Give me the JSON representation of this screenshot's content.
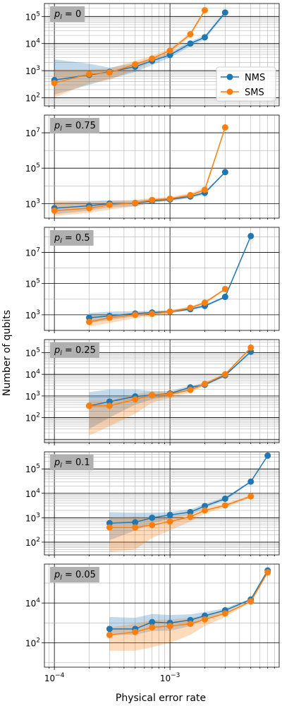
{
  "figure": {
    "xlabel": "Physical error rate",
    "ylabel": "Number of qubits"
  },
  "legend": {
    "entries": [
      {
        "name": "NMS",
        "color": "#1f77b4"
      },
      {
        "name": "SMS",
        "color": "#ff7f0e"
      }
    ]
  },
  "chart_data": [
    {
      "type": "line",
      "annotation": "p_l = 0",
      "x_scale": "log",
      "y_scale": "log",
      "xlim": [
        8.2e-05,
        0.0088
      ],
      "ylim": [
        50,
        300000
      ],
      "x_ticks": [
        "10^-4",
        "10^-3"
      ],
      "y_ticks": [
        "10^2",
        "10^3",
        "10^4",
        "10^5"
      ],
      "grid": "both (major and minor)",
      "legend_placement": "lower-right",
      "series": [
        {
          "name": "NMS",
          "color": "#1f77b4",
          "x": [
            0.0001,
            0.0002,
            0.0003,
            0.0005,
            0.0007,
            0.001,
            0.0015,
            0.002,
            0.003
          ],
          "y": [
            450,
            700,
            900,
            1400,
            2300,
            3800,
            10000,
            17000,
            140000
          ],
          "band_low": [
            130,
            300,
            500,
            900,
            1600,
            3000,
            8000,
            14000,
            120000
          ],
          "band_high": [
            2600,
            1800,
            1300,
            1900,
            2800,
            4600,
            12000,
            20000,
            160000
          ]
        },
        {
          "name": "SMS",
          "color": "#ff7f0e",
          "x": [
            0.0001,
            0.0002,
            0.0003,
            0.0005,
            0.0007,
            0.001,
            0.0015,
            0.002
          ],
          "y": [
            350,
            750,
            850,
            1700,
            2800,
            5500,
            22000,
            170000
          ],
          "band_low": [
            100,
            350,
            450,
            1100,
            2100,
            4500,
            18000,
            150000
          ],
          "band_high": [
            1100,
            1100,
            1200,
            2300,
            3500,
            6500,
            26000,
            190000
          ]
        }
      ]
    },
    {
      "type": "line",
      "annotation": "p_l = 0.75",
      "x_scale": "log",
      "y_scale": "log",
      "xlim": [
        8.2e-05,
        0.0088
      ],
      "ylim": [
        150,
        100000000
      ],
      "x_ticks": [
        "10^-4",
        "10^-3"
      ],
      "y_ticks": [
        "10^3",
        "10^5",
        "10^7"
      ],
      "grid": "both (major and minor)",
      "series": [
        {
          "name": "NMS",
          "color": "#1f77b4",
          "x": [
            0.0001,
            0.0002,
            0.0003,
            0.0005,
            0.0007,
            0.001,
            0.0015,
            0.002,
            0.003
          ],
          "y": [
            550,
            750,
            1000,
            1050,
            1400,
            1700,
            2500,
            4000,
            60000
          ],
          "band_low": [
            250,
            400,
            600,
            700,
            1100,
            1400,
            2000,
            3300,
            55000
          ],
          "band_high": [
            1200,
            1400,
            1500,
            1500,
            1800,
            2100,
            3100,
            4800,
            66000
          ]
        },
        {
          "name": "SMS",
          "color": "#ff7f0e",
          "x": [
            0.0001,
            0.0002,
            0.0003,
            0.0005,
            0.0007,
            0.001,
            0.0015,
            0.002,
            0.003
          ],
          "y": [
            400,
            550,
            850,
            1100,
            1600,
            1900,
            3000,
            6000,
            20000000
          ],
          "band_low": [
            200,
            300,
            450,
            700,
            1200,
            1500,
            2300,
            4500,
            18000000
          ],
          "band_high": [
            1500,
            1300,
            1400,
            1600,
            2100,
            2400,
            3900,
            8000,
            22000000
          ]
        }
      ]
    },
    {
      "type": "line",
      "annotation": "p_l = 0.5",
      "x_scale": "log",
      "y_scale": "log",
      "xlim": [
        8.2e-05,
        0.0088
      ],
      "ylim": [
        100,
        400000000
      ],
      "x_ticks": [
        "10^-4",
        "10^-3"
      ],
      "y_ticks": [
        "10^3",
        "10^5",
        "10^7"
      ],
      "grid": "both (major and minor)",
      "series": [
        {
          "name": "NMS",
          "color": "#1f77b4",
          "x": [
            0.0002,
            0.0003,
            0.0005,
            0.0007,
            0.001,
            0.0015,
            0.002,
            0.003,
            0.005
          ],
          "y": [
            650,
            850,
            1200,
            1400,
            1600,
            2300,
            3700,
            14000,
            110000000
          ],
          "band_low": [
            300,
            450,
            800,
            1000,
            1300,
            1900,
            3000,
            12000,
            100000000
          ],
          "band_high": [
            1300,
            1600,
            1700,
            1800,
            2000,
            2800,
            4500,
            16000,
            120000000
          ]
        },
        {
          "name": "SMS",
          "color": "#ff7f0e",
          "x": [
            0.0002,
            0.0003,
            0.0005,
            0.0007,
            0.001,
            0.0015,
            0.002,
            0.003
          ],
          "y": [
            350,
            650,
            1000,
            1150,
            1600,
            2800,
            6000,
            45000
          ],
          "band_low": [
            180,
            300,
            600,
            800,
            1200,
            2200,
            4800,
            40000
          ],
          "band_high": [
            900,
            1000,
            1400,
            1500,
            2000,
            3400,
            7500,
            50000
          ]
        }
      ]
    },
    {
      "type": "line",
      "annotation": "p_l = 0.25",
      "x_scale": "log",
      "y_scale": "log",
      "xlim": [
        8.2e-05,
        0.0088
      ],
      "ylim": [
        7,
        400000
      ],
      "x_ticks": [
        "10^-4",
        "10^-3"
      ],
      "y_ticks": [
        "10^2",
        "10^3",
        "10^4",
        "10^5"
      ],
      "grid": "both (major and minor)",
      "series": [
        {
          "name": "NMS",
          "color": "#1f77b4",
          "x": [
            0.0002,
            0.0003,
            0.0005,
            0.0007,
            0.001,
            0.0015,
            0.002,
            0.003,
            0.005
          ],
          "y": [
            350,
            550,
            950,
            1100,
            1300,
            2500,
            3300,
            9000,
            110000
          ],
          "band_low": [
            30,
            100,
            400,
            700,
            1000,
            2000,
            2800,
            8000,
            100000
          ],
          "band_high": [
            1500,
            2000,
            2000,
            1700,
            1700,
            3000,
            4000,
            10000,
            120000
          ]
        },
        {
          "name": "SMS",
          "color": "#ff7f0e",
          "x": [
            0.0002,
            0.0003,
            0.0005,
            0.0007,
            0.001,
            0.0015,
            0.002,
            0.003,
            0.005
          ],
          "y": [
            350,
            350,
            700,
            1100,
            1200,
            1900,
            3600,
            10000,
            170000
          ],
          "band_low": [
            15,
            40,
            150,
            500,
            800,
            1500,
            3000,
            9000,
            160000
          ],
          "band_high": [
            600,
            600,
            1200,
            1600,
            1600,
            2400,
            4300,
            11000,
            180000
          ]
        }
      ]
    },
    {
      "type": "line",
      "annotation": "p_l = 0.1",
      "x_scale": "log",
      "y_scale": "log",
      "xlim": [
        8.2e-05,
        0.0088
      ],
      "ylim": [
        30,
        500000
      ],
      "x_ticks": [
        "10^-4",
        "10^-3"
      ],
      "y_ticks": [
        "10^2",
        "10^3",
        "10^4",
        "10^5"
      ],
      "grid": "both (major and minor)",
      "series": [
        {
          "name": "NMS",
          "color": "#1f77b4",
          "x": [
            0.0003,
            0.0005,
            0.0007,
            0.001,
            0.0015,
            0.002,
            0.003,
            0.005,
            0.007
          ],
          "y": [
            600,
            650,
            1000,
            1300,
            1700,
            3000,
            6000,
            30000,
            350000
          ],
          "band_low": [
            120,
            300,
            600,
            900,
            1300,
            2500,
            5000,
            28000,
            330000
          ],
          "band_high": [
            1700,
            1600,
            1600,
            1700,
            2200,
            3600,
            7000,
            32000,
            370000
          ]
        },
        {
          "name": "SMS",
          "color": "#ff7f0e",
          "x": [
            0.0003,
            0.0005,
            0.0007,
            0.001,
            0.0015,
            0.002,
            0.003,
            0.005
          ],
          "y": [
            400,
            400,
            500,
            700,
            1100,
            2000,
            3200,
            7500
          ],
          "band_low": [
            40,
            50,
            150,
            300,
            700,
            1500,
            2600,
            6800
          ],
          "band_high": [
            1000,
            1100,
            1000,
            1200,
            1500,
            2500,
            3800,
            8200
          ]
        }
      ]
    },
    {
      "type": "line",
      "annotation": "p_l = 0.05",
      "x_scale": "log",
      "y_scale": "log",
      "xlim": [
        8.2e-05,
        0.0088
      ],
      "ylim": [
        6,
        900000
      ],
      "x_ticks": [
        "10^-4",
        "10^-3"
      ],
      "y_ticks": [
        "10^2",
        "10^4"
      ],
      "grid": "both (major and minor)",
      "series": [
        {
          "name": "NMS",
          "color": "#1f77b4",
          "x": [
            0.0003,
            0.0005,
            0.0007,
            0.001,
            0.0015,
            0.002,
            0.003,
            0.005,
            0.007
          ],
          "y": [
            500,
            500,
            1100,
            1000,
            1400,
            2300,
            4300,
            15000,
            430000
          ],
          "band_low": [
            250,
            250,
            400,
            400,
            700,
            1500,
            3500,
            14000,
            410000
          ],
          "band_high": [
            2000,
            1800,
            2800,
            2500,
            2700,
            3500,
            5500,
            17000,
            450000
          ]
        },
        {
          "name": "SMS",
          "color": "#ff7f0e",
          "x": [
            0.0003,
            0.0005,
            0.0007,
            0.001,
            0.0015,
            0.002,
            0.003,
            0.005,
            0.007
          ],
          "y": [
            250,
            350,
            600,
            700,
            900,
            1500,
            3000,
            12000,
            350000
          ],
          "band_low": [
            40,
            40,
            60,
            100,
            250,
            700,
            2000,
            11000,
            330000
          ],
          "band_high": [
            600,
            900,
            1400,
            1500,
            1800,
            2300,
            4000,
            13500,
            370000
          ]
        }
      ]
    }
  ]
}
